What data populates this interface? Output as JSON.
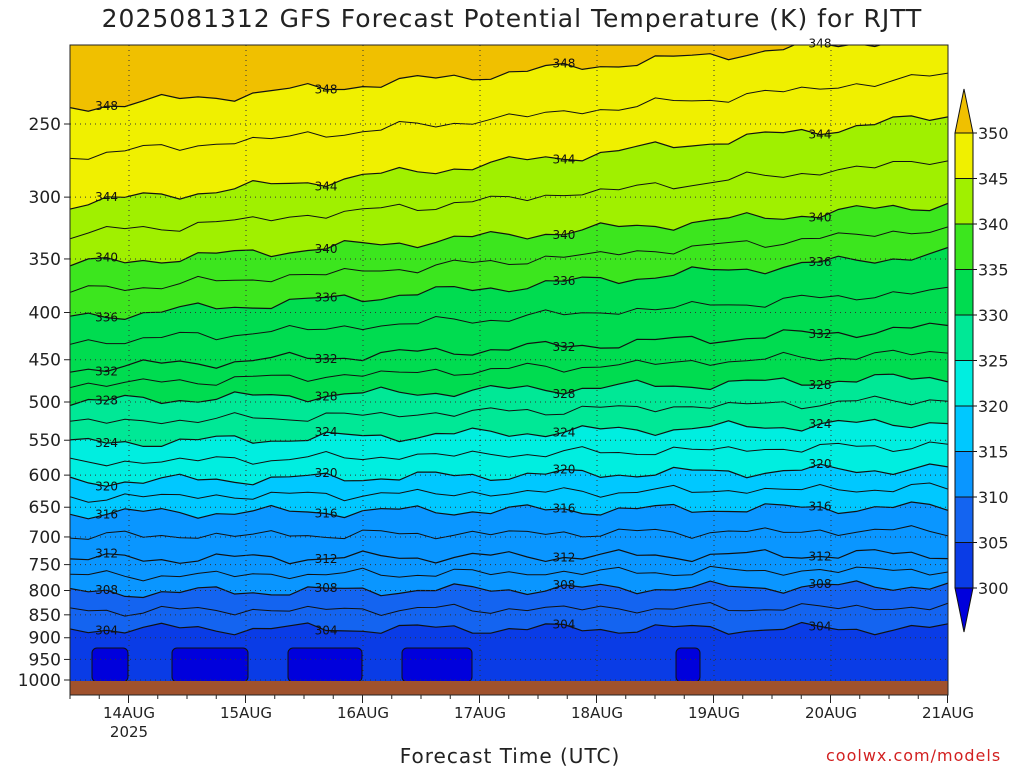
{
  "title": "2025081312 GFS Forecast Potential Temperature (K) for RJTT",
  "credit": "coolwx.com/models",
  "chart_data": {
    "type": "contour",
    "title": "2025081312 GFS Forecast Potential Temperature (K) for RJTT",
    "xlabel": "Forecast Time (UTC)",
    "ylabel": "",
    "x_ticks": [
      "14AUG",
      "15AUG",
      "16AUG",
      "17AUG",
      "18AUG",
      "19AUG",
      "20AUG",
      "21AUG"
    ],
    "x_year_label": "2025",
    "x_range": [
      "13AUG 12Z",
      "21AUG 00Z"
    ],
    "y_ticks": [
      250,
      300,
      350,
      400,
      450,
      500,
      550,
      600,
      650,
      700,
      750,
      800,
      850,
      900,
      950,
      1000
    ],
    "y_range": [
      1000,
      200
    ],
    "y_scale": "log (pressure, hPa)",
    "grid": true,
    "colorbar": {
      "levels": [
        300,
        305,
        310,
        315,
        320,
        325,
        330,
        335,
        340,
        345,
        350
      ],
      "labels": [
        "300",
        "305",
        "310",
        "315",
        "320",
        "325",
        "330",
        "335",
        "340",
        "345",
        "350"
      ],
      "colors": [
        "#0000dc",
        "#0a3ce6",
        "#1464f0",
        "#0a96ff",
        "#00c8ff",
        "#00eee0",
        "#00e896",
        "#00dc50",
        "#3ce61e",
        "#a0f000",
        "#f0f000",
        "#f0c000"
      ],
      "extend": "both",
      "placement": "right"
    },
    "contour_interval_K": 4,
    "contour_labels": [
      "348",
      "344",
      "340",
      "336",
      "332",
      "328",
      "324",
      "320",
      "316",
      "312",
      "308",
      "304"
    ],
    "isentropes_approx_hPa": [
      {
        "theta": 348,
        "day0": 240,
        "day7": 200
      },
      {
        "theta": 344,
        "day0": 305,
        "day7": 245
      },
      {
        "theta": 340,
        "day0": 355,
        "day7": 305
      },
      {
        "theta": 336,
        "day0": 405,
        "day7": 345
      },
      {
        "theta": 332,
        "day0": 460,
        "day7": 415
      },
      {
        "theta": 328,
        "day0": 500,
        "day7": 470
      },
      {
        "theta": 324,
        "day0": 555,
        "day7": 525
      },
      {
        "theta": 320,
        "day0": 610,
        "day7": 590
      },
      {
        "theta": 316,
        "day0": 660,
        "day7": 650
      },
      {
        "theta": 312,
        "day0": 740,
        "day7": 730
      },
      {
        "theta": 308,
        "day0": 805,
        "day7": 790
      },
      {
        "theta": 304,
        "day0": 880,
        "day7": 880
      }
    ]
  }
}
